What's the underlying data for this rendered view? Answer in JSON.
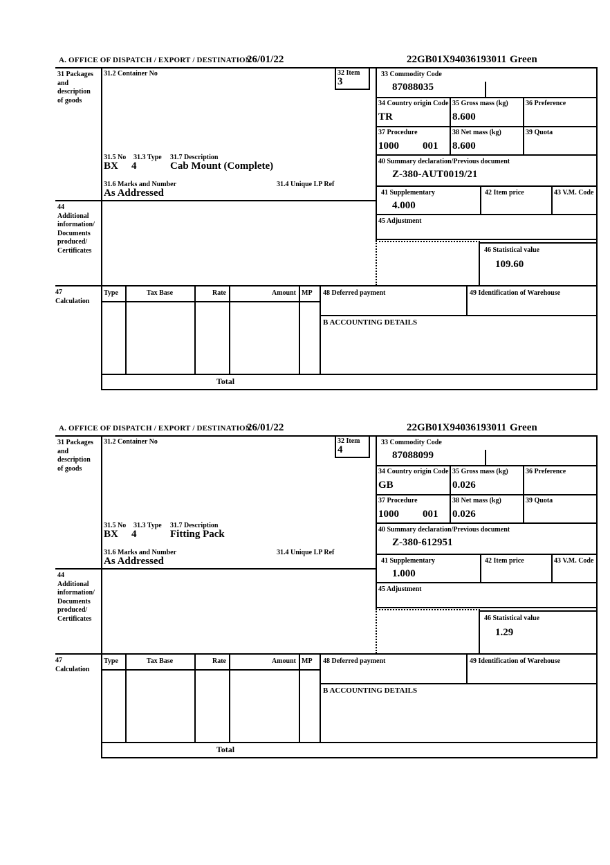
{
  "document_type": "customs-declaration-continuation-sheet",
  "labels": {
    "office": "A.  OFFICE OF DISPATCH / EXPORT / DESTINATION",
    "box31": "31 Packages\nand\ndescription\nof goods",
    "box31_2": "31.2 Container No",
    "box32": "32 Item",
    "box33": "33 Commodity Code",
    "box34": "34 Country origin Code",
    "box35": "35 Gross mass (kg)",
    "box36": "36 Preference",
    "box37": "37 Procedure",
    "box38": "38 Net mass (kg)",
    "box39": "39 Quota",
    "box40": "40 Summary declaration/Previous document",
    "box31_5": "31.5 No",
    "box31_3": "31.3 Type",
    "box31_7": "31.7 Description",
    "box31_6": "31.6 Marks and Number",
    "box31_4": "31.4 Unique LP Ref",
    "box41": "41 Supplementary",
    "box42": "42 Item price",
    "box43": "43 V.M. Code",
    "box44": "44\nAdditional\ninformation/\nDocuments\nproduced/\nCertificates",
    "box45": "45 Adjustment",
    "box46": "46 Statistical value",
    "box47": "47\nCalculation",
    "col_type": "Type",
    "col_tax_base": "Tax Base",
    "col_rate": "Rate",
    "col_amount": "Amount",
    "col_mp": "MP",
    "box48": "48 Deferred payment",
    "box49": "49 Identification of Warehouse",
    "accounting": "B ACCOUNTING DETAILS",
    "total": "Total"
  },
  "forms": [
    {
      "header": {
        "date": "26/01/22",
        "reference": "22GB01X94036193011",
        "status": "Green"
      },
      "values": {
        "item": "3",
        "commodity_code": "87088035",
        "country_origin": "TR",
        "gross_mass": "8.600",
        "procedure": "1000",
        "procedure_qualifier": "001",
        "net_mass": "8.600",
        "previous_document": "Z-380-AUT0019/21",
        "package_no": "BX",
        "package_type": "4",
        "description": "Cab Mount (Complete)",
        "marks": "As Addressed",
        "supplementary": "4.000",
        "statistical_value": "109.60"
      }
    },
    {
      "header": {
        "date": "26/01/22",
        "reference": "22GB01X94036193011",
        "status": "Green"
      },
      "values": {
        "item": "4",
        "commodity_code": "87088099",
        "country_origin": "GB",
        "gross_mass": "0.026",
        "procedure": "1000",
        "procedure_qualifier": "001",
        "net_mass": "0.026",
        "previous_document": "Z-380-612951",
        "package_no": "BX",
        "package_type": "4",
        "description": "Fitting Pack",
        "marks": "As Addressed",
        "supplementary": "1.000",
        "statistical_value": "1.29"
      }
    }
  ]
}
